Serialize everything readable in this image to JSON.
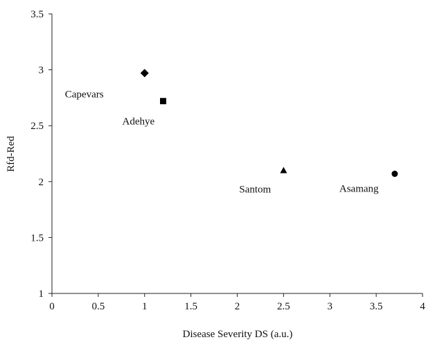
{
  "chart_data": {
    "type": "scatter",
    "xlabel": "Disease Severity DS (a.u.)",
    "ylabel": "Rfd-Red",
    "xlim": [
      0,
      4
    ],
    "ylim": [
      1,
      3.5
    ],
    "xticks": [
      "0",
      "0.5",
      "1",
      "1.5",
      "2",
      "2.5",
      "3",
      "3.5",
      "4"
    ],
    "yticks": [
      "1",
      "1.5",
      "2",
      "2.5",
      "3",
      "3.5"
    ],
    "grid": false,
    "legend": "none",
    "points": [
      {
        "label": "Capevars",
        "x": 1.0,
        "y": 2.97,
        "marker": "diamond"
      },
      {
        "label": "Adehye",
        "x": 1.2,
        "y": 2.72,
        "marker": "square"
      },
      {
        "label": "Santom",
        "x": 2.5,
        "y": 2.1,
        "marker": "triangle"
      },
      {
        "label": "Asamang",
        "x": 3.7,
        "y": 2.07,
        "marker": "circle"
      }
    ]
  }
}
